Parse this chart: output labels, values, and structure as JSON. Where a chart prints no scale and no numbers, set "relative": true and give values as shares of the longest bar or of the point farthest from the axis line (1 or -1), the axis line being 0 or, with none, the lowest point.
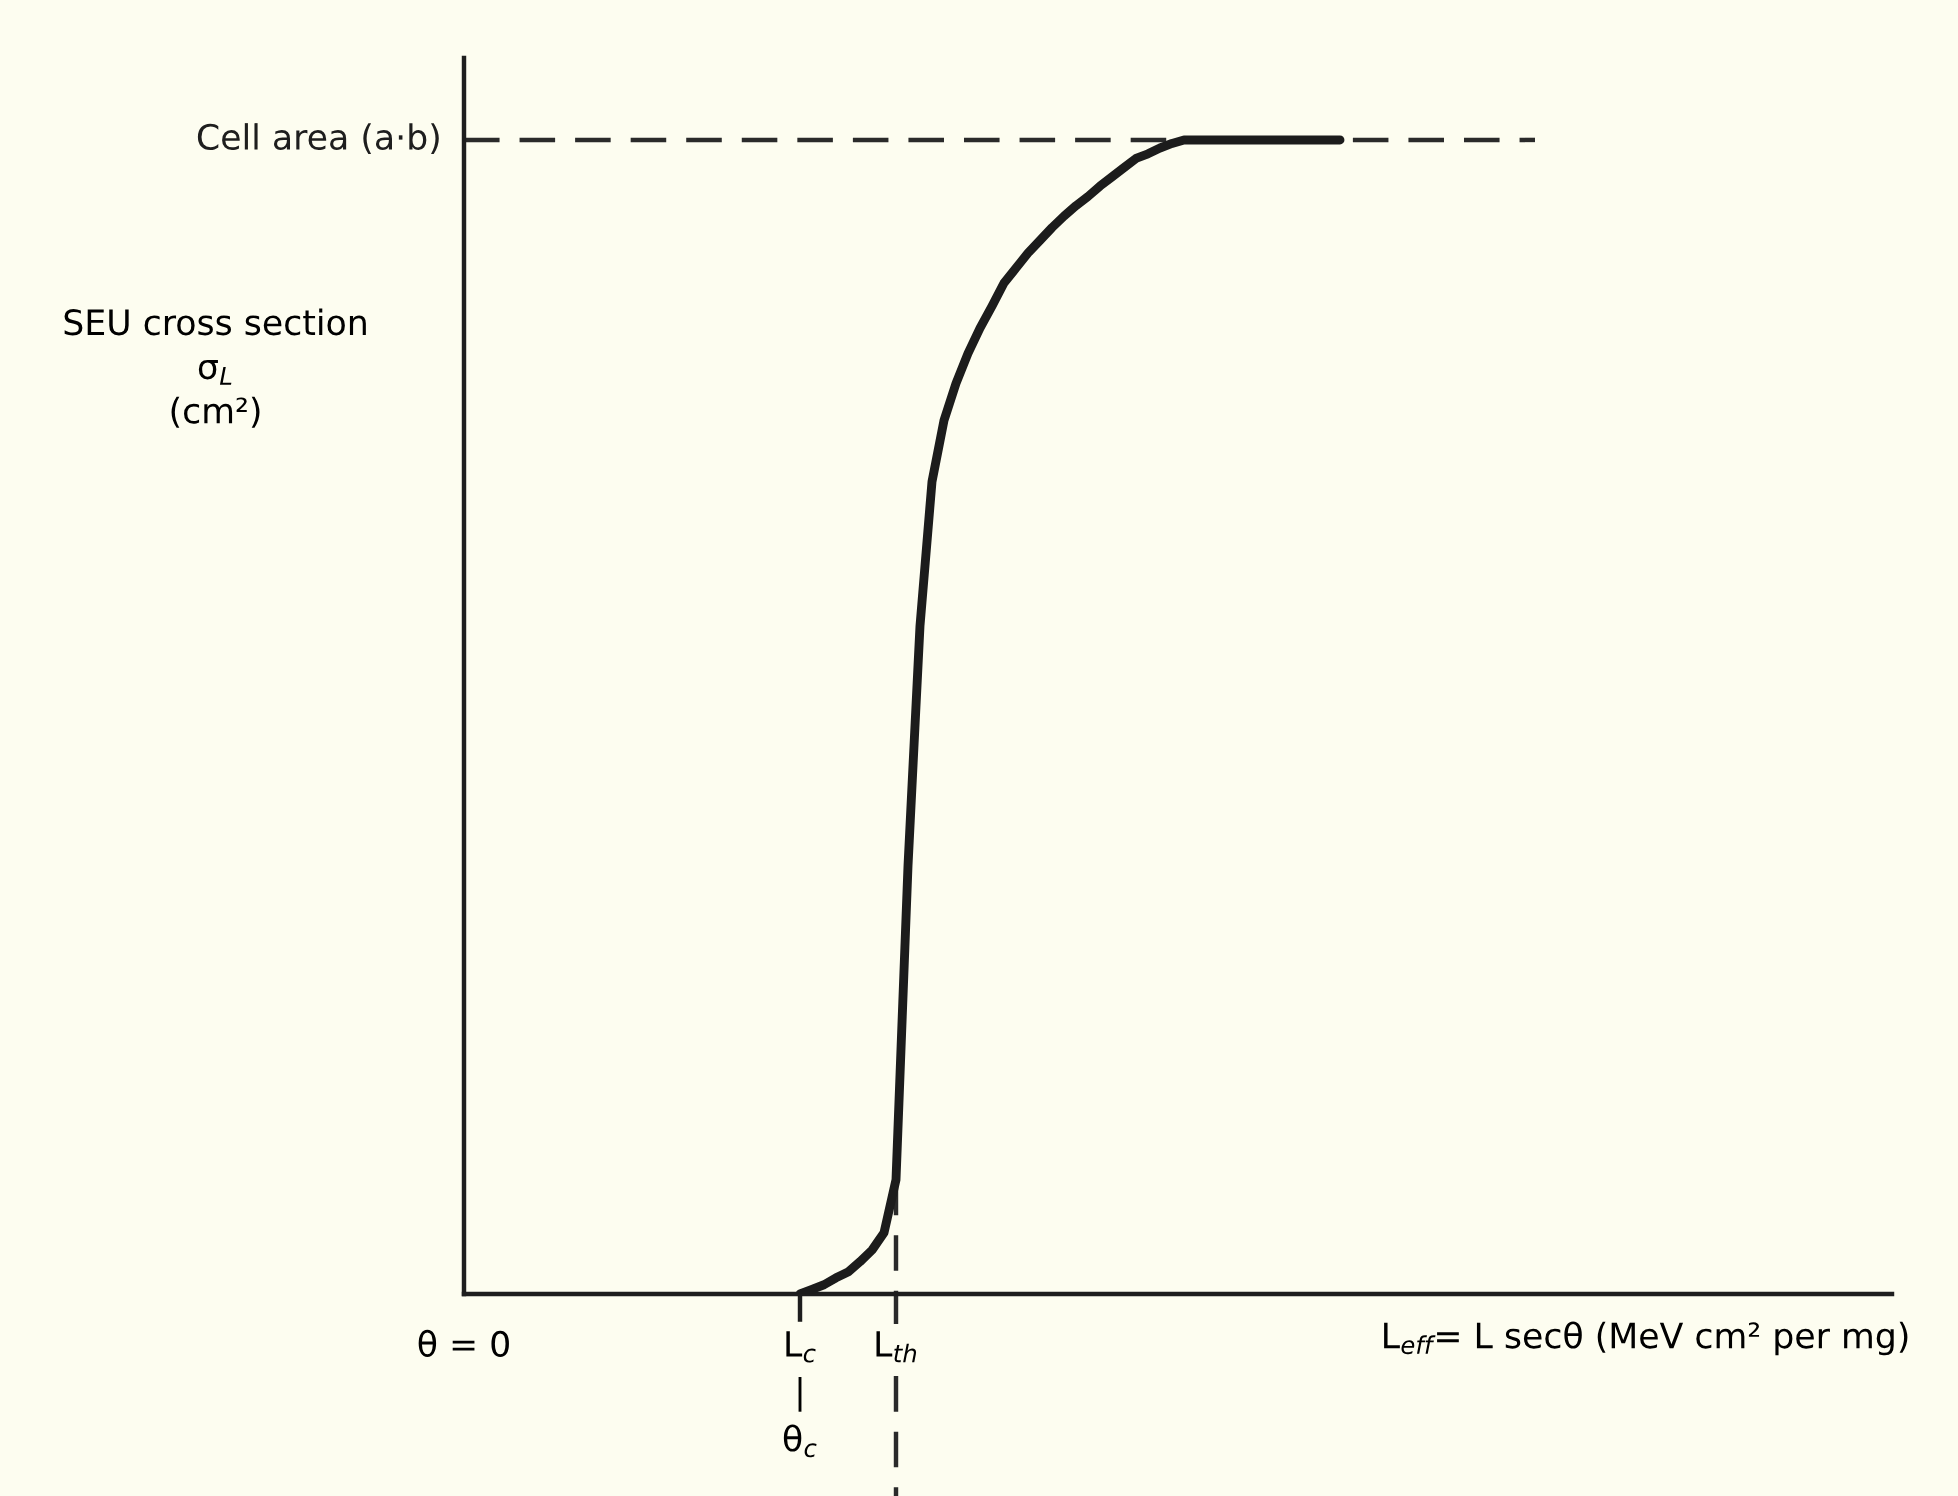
{
  "chart_data": {
    "type": "line",
    "relative": true,
    "xlabel": "L$_{eff}$= L secθ (MeV cm² per mg)",
    "ylabel": "SEU cross section\nσ$_{L}$\n(cm²)",
    "categories": [
      "θ = 0",
      null,
      null,
      null,
      null,
      null,
      null,
      null,
      null,
      null,
      null,
      null,
      null,
      null,
      null,
      null,
      null,
      null,
      null,
      null,
      null,
      null,
      null,
      null,
      null,
      null,
      null,
      null,
      "L$_{c}$\n|\nθ$_{c}$",
      null,
      null,
      null,
      null,
      null,
      null,
      null,
      "L$_{th}$",
      null,
      null,
      null,
      null,
      null,
      null,
      null,
      null,
      null,
      null,
      null,
      null,
      null,
      null,
      null,
      null,
      null,
      null,
      null,
      null,
      null,
      null,
      null,
      null,
      null,
      null,
      null,
      null,
      null,
      null,
      null,
      null,
      null,
      null,
      null,
      null,
      null,
      null,
      null,
      null,
      null,
      null,
      null,
      null,
      null,
      null,
      null,
      null,
      null,
      null,
      null,
      null,
      null,
      null,
      null,
      null,
      null,
      null,
      null,
      null,
      null,
      null,
      null,
      null,
      null,
      null,
      null,
      null,
      null,
      null,
      null,
      null,
      null,
      null,
      null,
      null,
      null,
      null,
      null,
      null,
      null,
      null,
      null
    ],
    "series": [
      {
        "color": "#1c1c1c",
        "values": [
          null,
          null,
          null,
          null,
          null,
          null,
          null,
          null,
          null,
          null,
          null,
          null,
          null,
          null,
          null,
          null,
          null,
          null,
          null,
          null,
          null,
          null,
          null,
          null,
          null,
          null,
          null,
          null,
          0,
          0.004,
          0.008,
          0.014,
          0.019,
          0.028,
          0.038,
          0.053,
          0.099,
          0.371,
          0.579,
          0.704,
          0.757,
          0.789,
          0.815,
          0.837,
          0.856,
          0.876,
          0.889,
          0.902,
          0.913,
          0.924,
          0.934,
          0.943,
          0.951,
          0.96,
          0.968,
          0.976,
          0.984,
          0.988,
          0.993,
          0.997,
          1,
          1,
          1,
          1,
          1,
          1,
          1,
          1,
          1,
          1,
          1,
          1,
          1,
          1,
          null,
          null,
          null,
          null,
          null,
          null,
          null,
          null,
          null,
          null,
          null,
          null,
          null,
          null,
          null,
          null,
          null,
          null,
          null,
          null,
          null,
          null,
          null,
          null,
          null,
          null,
          null,
          null,
          null,
          null,
          null,
          null,
          null,
          null,
          null,
          null,
          null,
          null,
          null,
          null,
          null,
          null,
          null,
          null,
          null,
          null
        ]
      }
    ],
    "ref_lines": [
      {
        "axis": "y",
        "value": 1,
        "label": "Cell area (a·b)",
        "line_style": "dashed",
        "color": "#2a2a2a"
      },
      {
        "axis": "x",
        "value": "L$_{th}$",
        "line_style": "dashed",
        "color": "#2a2a2a"
      }
    ]
  }
}
